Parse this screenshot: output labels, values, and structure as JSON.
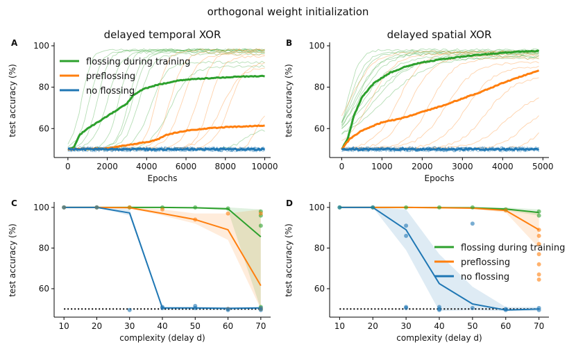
{
  "figure": {
    "title": "orthogonal weight initialization"
  },
  "colors": {
    "green": "#2ca02c",
    "orange": "#ff7f0e",
    "blue": "#1f77b4"
  },
  "chart_data": [
    {
      "id": "A",
      "panel_label": "A",
      "type": "line",
      "title": "delayed temporal XOR",
      "xlabel": "Epochs",
      "ylabel": "test accuracy (%)",
      "xlim": [
        -700,
        10300
      ],
      "ylim": [
        46,
        101
      ],
      "xticks": [
        0,
        2000,
        4000,
        6000,
        8000,
        10000
      ],
      "yticks": [
        60,
        80,
        100
      ],
      "legend": {
        "placement": "top-left",
        "entries": [
          "flossing during training",
          "preflossing",
          "no flossing"
        ]
      },
      "series": [
        {
          "name": "flossing during training",
          "color_key": "green",
          "x": [
            0,
            300,
            600,
            1000,
            1500,
            2000,
            2500,
            3000,
            3300,
            3800,
            4500,
            5500,
            6500,
            7500,
            8500,
            9500,
            10000
          ],
          "y": [
            50,
            51,
            57,
            60,
            63,
            66,
            69,
            72,
            76,
            79,
            81,
            83,
            84,
            84.5,
            85,
            85.3,
            85.4
          ]
        },
        {
          "name": "preflossing",
          "color_key": "orange",
          "x": [
            0,
            2000,
            3000,
            4000,
            4500,
            5000,
            5500,
            6000,
            7000,
            8000,
            9000,
            10000
          ],
          "y": [
            50,
            50.5,
            52,
            53.5,
            54.5,
            57,
            58,
            59,
            60,
            60.7,
            61,
            61.5
          ]
        },
        {
          "name": "no flossing",
          "color_key": "blue",
          "x": [
            0,
            10000
          ],
          "y": [
            50,
            50
          ]
        }
      ]
    },
    {
      "id": "B",
      "panel_label": "B",
      "type": "line",
      "title": "delayed spatial XOR",
      "xlabel": "Epochs",
      "ylabel": "test accuracy (%)",
      "xlim": [
        -300,
        5150
      ],
      "ylim": [
        46,
        101
      ],
      "xticks": [
        0,
        1000,
        2000,
        3000,
        4000,
        5000
      ],
      "yticks": [
        60,
        80,
        100
      ],
      "series": [
        {
          "name": "flossing during training",
          "color_key": "green",
          "x": [
            0,
            150,
            300,
            500,
            800,
            1200,
            1600,
            2000,
            2500,
            3000,
            3500,
            4000,
            4500,
            4900
          ],
          "y": [
            50,
            55,
            66,
            75,
            82,
            87,
            90,
            92,
            93.5,
            94.8,
            95.8,
            96.6,
            97.2,
            97.5
          ]
        },
        {
          "name": "preflossing",
          "color_key": "orange",
          "x": [
            0,
            200,
            500,
            1000,
            1500,
            2000,
            2500,
            3000,
            3500,
            4000,
            4500,
            4900
          ],
          "y": [
            50,
            55,
            59,
            63,
            65,
            68,
            71,
            74.5,
            78,
            82,
            85.5,
            88
          ]
        },
        {
          "name": "no flossing",
          "color_key": "blue",
          "x": [
            0,
            4900
          ],
          "y": [
            50,
            50
          ]
        }
      ]
    },
    {
      "id": "C",
      "panel_label": "C",
      "type": "line",
      "xlabel": "complexity (delay d)",
      "ylabel": "test accuracy (%)",
      "xlim": [
        7,
        73
      ],
      "ylim": [
        46,
        102
      ],
      "xticks": [
        10,
        20,
        30,
        40,
        50,
        60,
        70
      ],
      "yticks": [
        60,
        80,
        100
      ],
      "chance_level": 50,
      "categories": [
        10,
        20,
        30,
        40,
        50,
        60,
        70
      ],
      "series": [
        {
          "name": "flossing during training",
          "color_key": "green",
          "values": [
            100,
            100,
            100,
            100,
            99.8,
            99.3,
            85.5
          ],
          "band_low": [
            100,
            100,
            100,
            100,
            99.5,
            98.5,
            50
          ],
          "band_high": [
            100,
            100,
            100,
            100,
            100,
            100,
            99
          ]
        },
        {
          "name": "preflossing",
          "color_key": "orange",
          "values": [
            100,
            100,
            99.8,
            97,
            94,
            89,
            61.5
          ],
          "band_low": [
            100,
            100,
            99.5,
            96,
            92,
            84,
            50
          ],
          "band_high": [
            100,
            100,
            100,
            99,
            97,
            97,
            99
          ]
        },
        {
          "name": "no flossing",
          "color_key": "blue",
          "values": [
            100,
            100,
            97.3,
            50.5,
            50.5,
            50.3,
            50.5
          ],
          "band_low": [
            100,
            100,
            96,
            49.5,
            49.5,
            49.5,
            49.5
          ],
          "band_high": [
            100,
            100,
            99,
            51,
            51,
            51,
            51
          ]
        }
      ],
      "points": [
        {
          "color_key": "green",
          "x": [
            10,
            20,
            30,
            40,
            50,
            60,
            70,
            70,
            70,
            70,
            70
          ],
          "y": [
            100,
            100,
            100,
            100,
            100,
            99.5,
            98,
            96,
            91,
            51,
            50
          ]
        },
        {
          "color_key": "orange",
          "x": [
            10,
            20,
            30,
            40,
            50,
            60,
            60,
            70,
            70
          ],
          "y": [
            100,
            100,
            100,
            99,
            94,
            97,
            50,
            97,
            50
          ]
        },
        {
          "color_key": "blue",
          "x": [
            10,
            20,
            30,
            40,
            40,
            50,
            50,
            60,
            60,
            70,
            70
          ],
          "y": [
            100,
            100,
            49.5,
            50.5,
            51,
            50.5,
            51.5,
            50,
            49.5,
            50.5,
            49.5
          ]
        }
      ]
    },
    {
      "id": "D",
      "panel_label": "D",
      "type": "line",
      "xlabel": "complexity (delay d)",
      "ylabel": "test accuracy (%)",
      "xlim": [
        7,
        73
      ],
      "ylim": [
        46,
        102
      ],
      "xticks": [
        10,
        20,
        30,
        40,
        50,
        60,
        70
      ],
      "yticks": [
        60,
        80,
        100
      ],
      "chance_level": 50,
      "legend": {
        "placement": "center-right",
        "entries": [
          "flossing during training",
          "preflossing",
          "no flossing"
        ]
      },
      "categories": [
        10,
        20,
        30,
        40,
        50,
        60,
        70
      ],
      "series": [
        {
          "name": "flossing during training",
          "color_key": "green",
          "values": [
            100,
            100,
            100,
            99.9,
            99.8,
            99.2,
            97.5
          ],
          "band_low": [
            100,
            100,
            100,
            99.5,
            99.5,
            98.5,
            96
          ],
          "band_high": [
            100,
            100,
            100,
            100,
            100,
            100,
            99
          ]
        },
        {
          "name": "preflossing",
          "color_key": "orange",
          "values": [
            100,
            100,
            100,
            99.8,
            99.6,
            98.5,
            89
          ],
          "band_low": [
            100,
            100,
            99.8,
            99.5,
            99.3,
            97.5,
            80
          ],
          "band_high": [
            100,
            100,
            100,
            100,
            100,
            99.5,
            97.5
          ]
        },
        {
          "name": "no flossing",
          "color_key": "blue",
          "values": [
            100,
            100,
            89,
            62.5,
            52.5,
            49.5,
            50
          ],
          "band_low": [
            100,
            100,
            79,
            49,
            49.5,
            49,
            49
          ],
          "band_high": [
            100,
            100,
            99,
            77,
            61,
            51,
            51
          ]
        }
      ],
      "points": [
        {
          "color_key": "green",
          "x": [
            10,
            20,
            30,
            40,
            50,
            60,
            70,
            70
          ],
          "y": [
            100,
            100,
            100,
            100,
            100,
            99,
            98,
            96
          ]
        },
        {
          "color_key": "orange",
          "x": [
            70,
            70,
            70,
            70,
            70,
            70,
            70,
            60
          ],
          "y": [
            89,
            86,
            82,
            77,
            72,
            67,
            64.5,
            98.5
          ]
        },
        {
          "color_key": "blue",
          "x": [
            10,
            20,
            30,
            30,
            30,
            30,
            40,
            40,
            40,
            50,
            50,
            60,
            60,
            70,
            70
          ],
          "y": [
            100,
            100,
            91,
            86,
            51,
            50.5,
            51,
            50,
            49.5,
            92,
            50.5,
            50,
            49.5,
            50.5,
            49.5
          ]
        }
      ]
    }
  ]
}
